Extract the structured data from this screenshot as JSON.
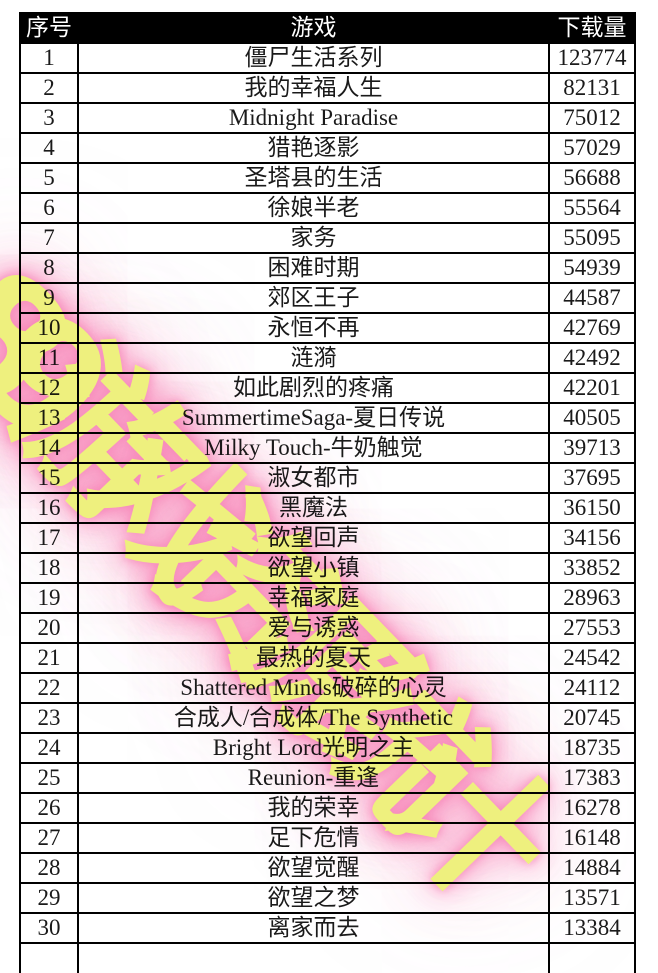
{
  "watermark": {
    "text": "89游戏资源统计",
    "color": "#eef07e",
    "glow_color": "#f78aba"
  },
  "colors": {
    "header_bg": "#000000",
    "header_text": "#ffffff",
    "body_bg": "#ffffff",
    "grid_line": "#000000"
  },
  "table": {
    "headers": [
      "序号",
      "游戏",
      "下载量"
    ],
    "rows": [
      {
        "rank": "1",
        "game": "僵尸生活系列",
        "downloads": "123774"
      },
      {
        "rank": "2",
        "game": "我的幸福人生",
        "downloads": "82131"
      },
      {
        "rank": "3",
        "game": "Midnight Paradise",
        "downloads": "75012"
      },
      {
        "rank": "4",
        "game": "猎艳逐影",
        "downloads": "57029"
      },
      {
        "rank": "5",
        "game": "圣塔县的生活",
        "downloads": "56688"
      },
      {
        "rank": "6",
        "game": "徐娘半老",
        "downloads": "55564"
      },
      {
        "rank": "7",
        "game": "家务",
        "downloads": "55095"
      },
      {
        "rank": "8",
        "game": "困难时期",
        "downloads": "54939"
      },
      {
        "rank": "9",
        "game": "郊区王子",
        "downloads": "44587"
      },
      {
        "rank": "10",
        "game": "永恒不再",
        "downloads": "42769"
      },
      {
        "rank": "11",
        "game": "涟漪",
        "downloads": "42492"
      },
      {
        "rank": "12",
        "game": "如此剧烈的疼痛",
        "downloads": "42201"
      },
      {
        "rank": "13",
        "game": "SummertimeSaga-夏日传说",
        "downloads": "40505"
      },
      {
        "rank": "14",
        "game": "Milky Touch-牛奶触觉",
        "downloads": "39713"
      },
      {
        "rank": "15",
        "game": "淑女都市",
        "downloads": "37695"
      },
      {
        "rank": "16",
        "game": "黑魔法",
        "downloads": "36150"
      },
      {
        "rank": "17",
        "game": "欲望回声",
        "downloads": "34156"
      },
      {
        "rank": "18",
        "game": "欲望小镇",
        "downloads": "33852"
      },
      {
        "rank": "19",
        "game": "幸福家庭",
        "downloads": "28963"
      },
      {
        "rank": "20",
        "game": "爱与诱惑",
        "downloads": "27553"
      },
      {
        "rank": "21",
        "game": "最热的夏天",
        "downloads": "24542"
      },
      {
        "rank": "22",
        "game": "Shattered Minds破碎的心灵",
        "downloads": "24112"
      },
      {
        "rank": "23",
        "game": "合成人/合成体/The Synthetic",
        "downloads": "20745"
      },
      {
        "rank": "24",
        "game": "Bright Lord光明之主",
        "downloads": "18735"
      },
      {
        "rank": "25",
        "game": "Reunion-重逢",
        "downloads": "17383"
      },
      {
        "rank": "26",
        "game": "我的荣幸",
        "downloads": "16278"
      },
      {
        "rank": "27",
        "game": "足下危情",
        "downloads": "16148"
      },
      {
        "rank": "28",
        "game": "欲望觉醒",
        "downloads": "14884"
      },
      {
        "rank": "29",
        "game": "欲望之梦",
        "downloads": "13571"
      },
      {
        "rank": "30",
        "game": "离家而去",
        "downloads": "13384"
      }
    ]
  }
}
